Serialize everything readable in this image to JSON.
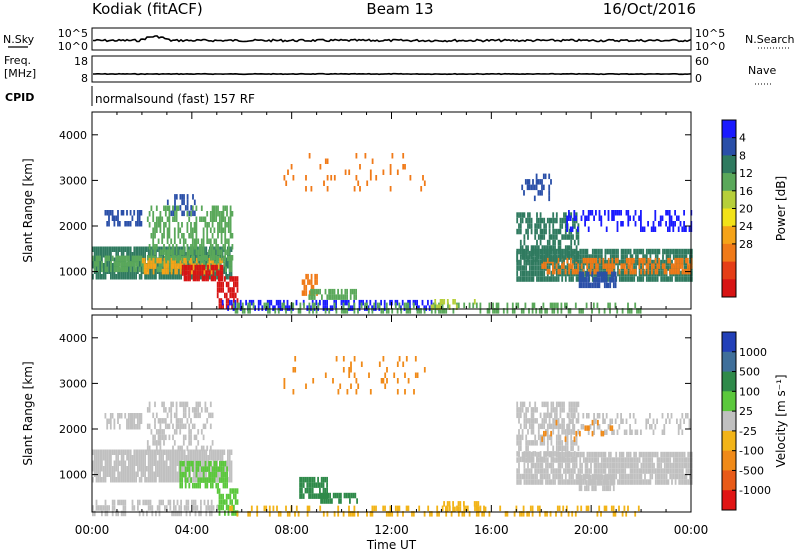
{
  "header": {
    "station": "Kodiak (fitACF)",
    "beam": "Beam 13",
    "date": "16/Oct/2016"
  },
  "strip_labels": {
    "nsky": "N.Sky",
    "nsearch": "N.Search",
    "freq": "Freq.",
    "freq_unit": "[MHz]",
    "nave": "Nave",
    "cpid": "CPID",
    "cpid_value": "normalsound (fast) 157 RF",
    "nsky_ticks": [
      "10^5",
      "10^0"
    ],
    "nsearch_ticks": [
      "10^5",
      "10^0"
    ],
    "freq_ticks": [
      "18",
      "8"
    ],
    "nave_ticks": [
      "60",
      "0"
    ]
  },
  "chart_data": [
    {
      "type": "heatmap",
      "name": "power-panel",
      "xlabel": "",
      "ylabel": "Slant Range [km]",
      "xlim": [
        0,
        24
      ],
      "ylim": [
        180,
        4500
      ],
      "yticks": [
        1000,
        2000,
        3000,
        4000
      ],
      "colorbar": {
        "label": "Power [dB]",
        "ticks": [
          "4",
          "8",
          "12",
          "16",
          "20",
          "24",
          "28"
        ],
        "colors": [
          "#1a1aff",
          "#2a4fa8",
          "#2f7a5f",
          "#5aa85a",
          "#b6cf3a",
          "#f2e218",
          "#f5a318",
          "#f07a18",
          "#e53d16",
          "#d71414"
        ]
      },
      "regions": [
        {
          "t": [
            0.0,
            5.6
          ],
          "r": [
            880,
            1550
          ],
          "c": "#2f7a5f",
          "d": 0.9
        },
        {
          "t": [
            0.0,
            5.6
          ],
          "r": [
            1000,
            1350
          ],
          "c": "#5aa85a",
          "d": 0.7
        },
        {
          "t": [
            2.0,
            5.2
          ],
          "r": [
            950,
            1300
          ],
          "c": "#f5a318",
          "d": 0.6
        },
        {
          "t": [
            2.2,
            5.6
          ],
          "r": [
            1300,
            2450
          ],
          "c": "#5aa85a",
          "d": 0.5
        },
        {
          "t": [
            3.6,
            5.2
          ],
          "r": [
            850,
            1150
          ],
          "c": "#d71414",
          "d": 0.85
        },
        {
          "t": [
            5.0,
            5.8
          ],
          "r": [
            200,
            900
          ],
          "c": "#d71414",
          "d": 0.7
        },
        {
          "t": [
            0.5,
            2.0
          ],
          "r": [
            2050,
            2350
          ],
          "c": "#2a4fa8",
          "d": 0.6
        },
        {
          "t": [
            3.0,
            4.2
          ],
          "r": [
            2300,
            2700
          ],
          "c": "#2a4fa8",
          "d": 0.35
        },
        {
          "t": [
            5.2,
            14.0
          ],
          "r": [
            200,
            380
          ],
          "c": "#1a1aff",
          "d": 0.45
        },
        {
          "t": [
            5.5,
            22.0
          ],
          "r": [
            180,
            320
          ],
          "c": "#5aa85a",
          "d": 0.4
        },
        {
          "t": [
            8.4,
            9.0
          ],
          "r": [
            500,
            950
          ],
          "c": "#f07a18",
          "d": 0.7
        },
        {
          "t": [
            8.6,
            10.6
          ],
          "r": [
            420,
            620
          ],
          "c": "#5aa85a",
          "d": 0.7
        },
        {
          "t": [
            13.5,
            15.5
          ],
          "r": [
            200,
            400
          ],
          "c": "#b6cf3a",
          "d": 0.3
        },
        {
          "t": [
            17.0,
            24.0
          ],
          "r": [
            850,
            1500
          ],
          "c": "#2f7a5f",
          "d": 0.85
        },
        {
          "t": [
            18.0,
            24.0
          ],
          "r": [
            950,
            1300
          ],
          "c": "#f07a18",
          "d": 0.6
        },
        {
          "t": [
            17.0,
            19.5
          ],
          "r": [
            1300,
            2300
          ],
          "c": "#2f7a5f",
          "d": 0.6
        },
        {
          "t": [
            19.5,
            21.0
          ],
          "r": [
            650,
            1000
          ],
          "c": "#2a4fa8",
          "d": 0.8
        },
        {
          "t": [
            19.0,
            24.0
          ],
          "r": [
            1900,
            2350
          ],
          "c": "#1a1aff",
          "d": 0.35
        },
        {
          "t": [
            17.2,
            18.4
          ],
          "r": [
            2550,
            3150
          ],
          "c": "#2a4fa8",
          "d": 0.3
        },
        {
          "t": [
            7.6,
            13.4
          ],
          "r": [
            2800,
            3600
          ],
          "c": "#f07a18",
          "d": 0.08
        }
      ]
    },
    {
      "type": "heatmap",
      "name": "velocity-panel",
      "xlabel": "Time UT",
      "ylabel": "Slant Range [km]",
      "xlim": [
        0,
        24
      ],
      "ylim": [
        180,
        4500
      ],
      "yticks": [
        1000,
        2000,
        3000,
        4000
      ],
      "xticks": [
        "00:00",
        "04:00",
        "08:00",
        "12:00",
        "16:00",
        "20:00",
        "00:00"
      ],
      "colorbar": {
        "label": "Velocity [m s⁻¹]",
        "ticks": [
          "1000",
          "500",
          "100",
          "25",
          "-25",
          "-100",
          "-500",
          "-1000"
        ],
        "colors": [
          "#2240b8",
          "#3f6f9a",
          "#2f8a4a",
          "#5bc83c",
          "#c0c0c0",
          "#f2b418",
          "#f08a18",
          "#e85a18",
          "#e01414"
        ]
      },
      "regions": [
        {
          "t": [
            0.0,
            5.6
          ],
          "r": [
            900,
            1550
          ],
          "c": "#c0c0c0",
          "d": 0.9
        },
        {
          "t": [
            0.5,
            2.0
          ],
          "r": [
            2050,
            2350
          ],
          "c": "#c0c0c0",
          "d": 0.6
        },
        {
          "t": [
            2.2,
            4.8
          ],
          "r": [
            1600,
            2600
          ],
          "c": "#c0c0c0",
          "d": 0.45
        },
        {
          "t": [
            3.5,
            5.4
          ],
          "r": [
            700,
            1300
          ],
          "c": "#5bc83c",
          "d": 0.7
        },
        {
          "t": [
            5.0,
            5.8
          ],
          "r": [
            200,
            700
          ],
          "c": "#5bc83c",
          "d": 0.7
        },
        {
          "t": [
            0.0,
            5.0
          ],
          "r": [
            180,
            450
          ],
          "c": "#c0c0c0",
          "d": 0.4
        },
        {
          "t": [
            8.3,
            9.4
          ],
          "r": [
            500,
            950
          ],
          "c": "#2f8a4a",
          "d": 0.75
        },
        {
          "t": [
            9.0,
            10.6
          ],
          "r": [
            420,
            600
          ],
          "c": "#2f8a4a",
          "d": 0.7
        },
        {
          "t": [
            5.5,
            22.0
          ],
          "r": [
            180,
            320
          ],
          "c": "#f2b418",
          "d": 0.3
        },
        {
          "t": [
            14.0,
            15.8
          ],
          "r": [
            250,
            420
          ],
          "c": "#f2b418",
          "d": 0.4
        },
        {
          "t": [
            17.0,
            24.0
          ],
          "r": [
            850,
            1500
          ],
          "c": "#c0c0c0",
          "d": 0.85
        },
        {
          "t": [
            17.0,
            19.5
          ],
          "r": [
            1300,
            2600
          ],
          "c": "#c0c0c0",
          "d": 0.6
        },
        {
          "t": [
            19.5,
            21.0
          ],
          "r": [
            650,
            1000
          ],
          "c": "#c0c0c0",
          "d": 0.8
        },
        {
          "t": [
            19.0,
            24.0
          ],
          "r": [
            1900,
            2350
          ],
          "c": "#c0c0c0",
          "d": 0.3
        },
        {
          "t": [
            18.0,
            21.0
          ],
          "r": [
            1800,
            2200
          ],
          "c": "#f08a18",
          "d": 0.1
        },
        {
          "t": [
            7.6,
            13.4
          ],
          "r": [
            2800,
            3600
          ],
          "c": "#f08a18",
          "d": 0.08
        }
      ]
    }
  ]
}
